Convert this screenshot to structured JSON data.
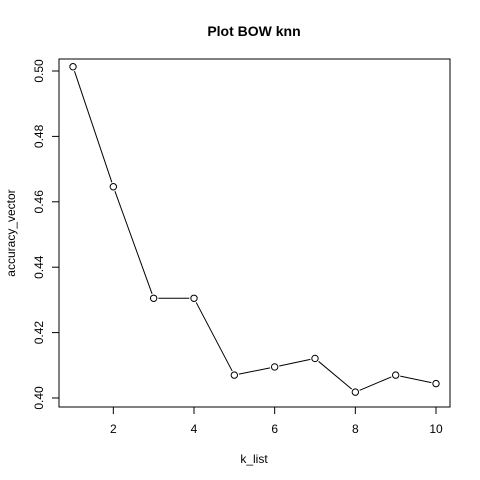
{
  "chart_data": {
    "type": "line",
    "title": "Plot BOW knn",
    "xlabel": "k_list",
    "ylabel": "accuracy_vector",
    "x": [
      1,
      2,
      3,
      4,
      5,
      6,
      7,
      8,
      9,
      10
    ],
    "series": [
      {
        "values": [
          0.5013,
          0.4646,
          0.4305,
          0.4305,
          0.407,
          0.4095,
          0.4121,
          0.4018,
          0.407,
          0.4044
        ]
      }
    ],
    "xlim": [
      1,
      10
    ],
    "ylim": [
      0.4,
      0.5
    ],
    "x_ticks": [
      2,
      4,
      6,
      8,
      10
    ],
    "y_ticks": [
      0.4,
      0.42,
      0.44,
      0.46,
      0.48,
      0.5
    ],
    "x_tick_labels": [
      "2",
      "4",
      "6",
      "8",
      "10"
    ],
    "y_tick_labels": [
      "0.40",
      "0.42",
      "0.44",
      "0.46",
      "0.48",
      "0.50"
    ],
    "grid": false,
    "legend": "none",
    "markers": "open-circle",
    "line_color": "#000000"
  }
}
